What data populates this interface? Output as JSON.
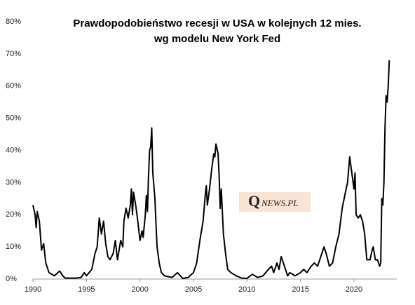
{
  "chart_data": {
    "type": "line",
    "title": [
      "Prawdopodobieństwo recesji w USA w kolejnych 12 mies.",
      "wg modelu New York Fed"
    ],
    "annotations": [
      "Q",
      "NEWS.PL"
    ],
    "xlim": [
      1990,
      2024
    ],
    "xticks": [
      1990,
      1995,
      2000,
      2005,
      2010,
      2015,
      2020
    ],
    "ylim": [
      0,
      80
    ],
    "yticks": [
      {
        "value": 0,
        "label": "0%"
      },
      {
        "value": 10,
        "label": "10%"
      },
      {
        "value": 20,
        "label": "20%"
      },
      {
        "value": 30,
        "label": "30%"
      },
      {
        "value": 40,
        "label": "40%"
      },
      {
        "value": 50,
        "label": "50%"
      },
      {
        "value": 60,
        "label": "60%"
      },
      {
        "value": 70,
        "label": "70%"
      },
      {
        "value": 80,
        "label": "80%"
      }
    ],
    "series": [
      {
        "color": "#000000",
        "x": [
          1990.0,
          1990.2,
          1990.3,
          1990.4,
          1990.6,
          1990.8,
          1991.0,
          1991.2,
          1991.5,
          1992.0,
          1992.5,
          1992.8,
          1993.0,
          1994.0,
          1994.5,
          1994.8,
          1995.0,
          1995.5,
          1995.8,
          1996.0,
          1996.2,
          1996.4,
          1996.6,
          1996.8,
          1997.0,
          1997.2,
          1997.5,
          1997.7,
          1997.9,
          1998.2,
          1998.4,
          1998.5,
          1998.7,
          1998.9,
          1999.1,
          1999.2,
          1999.3,
          1999.4,
          1999.6,
          1999.8,
          2000.0,
          2000.2,
          2000.3,
          2000.5,
          2000.6,
          2000.7,
          2000.8,
          2000.9,
          2001.0,
          2001.1,
          2001.2,
          2001.4,
          2001.5,
          2001.6,
          2001.8,
          2002.0,
          2002.3,
          2003.0,
          2003.5,
          2004.0,
          2004.5,
          2005.0,
          2005.3,
          2005.6,
          2005.9,
          2006.1,
          2006.2,
          2006.3,
          2006.5,
          2006.7,
          2006.9,
          2007.0,
          2007.1,
          2007.3,
          2007.4,
          2007.5,
          2007.6,
          2007.8,
          2008.0,
          2008.2,
          2008.5,
          2009.0,
          2009.5,
          2010.0,
          2010.5,
          2011.0,
          2011.5,
          2012.0,
          2012.3,
          2012.5,
          2012.8,
          2013.0,
          2013.2,
          2013.5,
          2013.8,
          2014.0,
          2014.5,
          2015.0,
          2015.3,
          2015.6,
          2016.0,
          2016.3,
          2016.6,
          2017.0,
          2017.2,
          2017.4,
          2017.7,
          2018.0,
          2018.3,
          2018.6,
          2018.9,
          2019.2,
          2019.4,
          2019.5,
          2019.6,
          2019.8,
          2020.0,
          2020.1,
          2020.2,
          2020.4,
          2020.6,
          2020.8,
          2021.0,
          2021.2,
          2021.5,
          2021.7,
          2021.8,
          2022.0,
          2022.2,
          2022.4,
          2022.5,
          2022.6,
          2022.7,
          2022.8,
          2022.9,
          2023.0,
          2023.1,
          2023.2,
          2023.3
        ],
        "values": [
          23,
          20,
          16,
          21,
          18,
          9,
          11,
          5,
          2,
          1,
          2.5,
          1,
          0.3,
          0.3,
          0.5,
          2,
          1,
          3,
          8,
          10,
          19,
          14,
          18,
          11,
          7,
          6,
          8,
          12,
          6,
          12,
          10,
          18,
          22,
          19,
          23,
          28,
          20,
          27,
          23,
          18,
          12,
          15,
          13,
          20,
          26,
          21,
          32,
          40,
          41,
          47,
          33,
          25,
          17,
          10,
          5,
          2,
          1,
          0.5,
          2,
          0.2,
          0.5,
          2,
          5,
          12,
          18,
          26,
          29,
          23,
          28,
          34,
          39,
          38,
          42,
          39,
          32,
          22,
          28,
          14,
          8,
          3,
          2,
          1,
          0.3,
          0.2,
          1.5,
          0.5,
          1,
          3,
          4,
          2,
          5,
          3,
          7,
          4,
          1,
          2,
          1,
          2,
          3,
          2,
          4,
          5,
          4,
          8,
          10,
          8,
          4,
          5,
          10,
          14,
          22,
          27,
          30,
          34,
          38,
          33,
          28,
          33,
          20,
          19,
          20,
          18,
          14,
          6,
          6,
          9,
          10,
          6,
          6,
          4,
          5,
          25,
          23,
          30,
          47,
          57,
          55,
          60,
          68
        ]
      }
    ]
  }
}
